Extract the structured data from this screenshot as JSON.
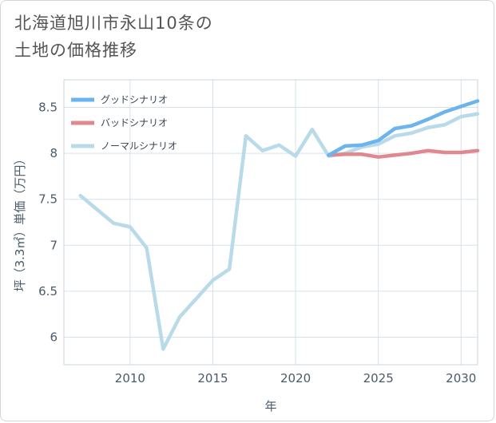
{
  "title_line1": "北海道旭川市永山10条の",
  "title_line2": "土地の価格推移",
  "chart_data": {
    "type": "line",
    "xlabel": "年",
    "ylabel": "坪（3.3㎡）単価（万円）",
    "xlim": [
      2006,
      2031
    ],
    "ylim": [
      5.7,
      8.8
    ],
    "xticks": [
      2010,
      2015,
      2020,
      2025,
      2030
    ],
    "yticks": [
      6,
      6.5,
      7,
      7.5,
      8,
      8.5
    ],
    "ytick_labels": [
      "6",
      "6.5",
      "7",
      "7.5",
      "8",
      "8.5"
    ],
    "xtick_labels": [
      "2010",
      "2015",
      "2020",
      "2025",
      "2030"
    ],
    "grid": true,
    "legend_position": "top-left",
    "series": [
      {
        "name": "グッドシナリオ",
        "color": "#6cb4ee",
        "x": [
          2022,
          2023,
          2024,
          2025,
          2026,
          2027,
          2028,
          2029,
          2030,
          2031
        ],
        "y": [
          7.98,
          8.08,
          8.09,
          8.14,
          8.27,
          8.3,
          8.37,
          8.45,
          8.51,
          8.57
        ]
      },
      {
        "name": "バッドシナリオ",
        "color": "#e0878f",
        "x": [
          2022,
          2023,
          2024,
          2025,
          2026,
          2027,
          2028,
          2029,
          2030,
          2031
        ],
        "y": [
          7.98,
          7.99,
          7.99,
          7.96,
          7.98,
          8.0,
          8.03,
          8.01,
          8.01,
          8.03
        ]
      },
      {
        "name": "ノーマルシナリオ",
        "color": "#b9dbe9",
        "x": [
          2007,
          2008,
          2009,
          2010,
          2011,
          2012,
          2013,
          2014,
          2015,
          2016,
          2017,
          2018,
          2019,
          2020,
          2021,
          2022,
          2023,
          2024,
          2025,
          2026,
          2027,
          2028,
          2029,
          2030,
          2031
        ],
        "y": [
          7.54,
          7.39,
          7.24,
          7.2,
          6.97,
          5.87,
          6.22,
          6.42,
          6.62,
          6.74,
          8.19,
          8.03,
          8.09,
          7.97,
          8.26,
          7.97,
          8.0,
          8.07,
          8.1,
          8.19,
          8.22,
          8.28,
          8.31,
          8.4,
          8.43
        ]
      }
    ]
  }
}
